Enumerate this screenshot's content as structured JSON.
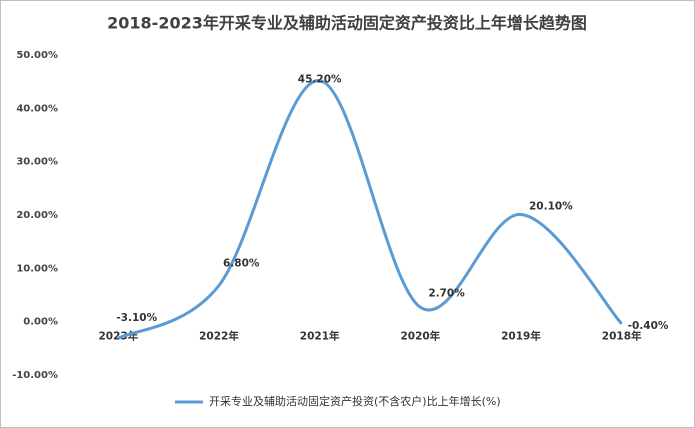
{
  "chart_data": {
    "type": "line",
    "title": "2018-2023年开采专业及辅助活动固定资产投资比上年增长趋势图",
    "categories": [
      "2023年",
      "2022年",
      "2021年",
      "2020年",
      "2019年",
      "2018年"
    ],
    "series": [
      {
        "name": "开采专业及辅助活动固定资产投资(不含农户)比上年增长(%)",
        "color": "#5b9bd5",
        "values": [
          -3.1,
          6.8,
          45.2,
          2.7,
          20.1,
          -0.4
        ],
        "value_labels": [
          "-3.10%",
          "6.80%",
          "45.20%",
          "2.70%",
          "20.10%",
          "-0.40%"
        ]
      }
    ],
    "ylim": [
      -10,
      50
    ],
    "yticks": [
      {
        "value": -10,
        "label": "-10.00%"
      },
      {
        "value": 0,
        "label": "0.00%"
      },
      {
        "value": 10,
        "label": "10.00%"
      },
      {
        "value": 20,
        "label": "20.00%"
      },
      {
        "value": 30,
        "label": "30.00%"
      },
      {
        "value": 40,
        "label": "40.00%"
      },
      {
        "value": 50,
        "label": "50.00%"
      }
    ],
    "grid": false,
    "legend": "bottom"
  }
}
